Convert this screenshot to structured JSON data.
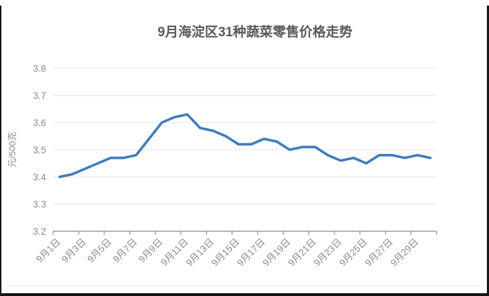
{
  "page_title": "9月海淀区31种蔬菜零售价格走势",
  "chart_data": {
    "type": "line",
    "title": "9月海淀区31种蔬菜零售价格走势",
    "xlabel": "",
    "ylabel": "元/500克",
    "ylim": [
      3.2,
      3.8
    ],
    "ytick_step": 0.1,
    "ytick_labels": [
      "3.2",
      "3.3",
      "3.4",
      "3.5",
      "3.6",
      "3.7",
      "3.8"
    ],
    "x_tick_labels": [
      "9月1日",
      "9月3日",
      "9月5日",
      "9月7日",
      "9月9日",
      "9月11日",
      "9月13日",
      "9月15日",
      "9月17日",
      "9月19日",
      "9月21日",
      "9月23日",
      "9月25日",
      "9月27日",
      "9月29日"
    ],
    "num_points": 30,
    "values": [
      3.4,
      3.41,
      3.43,
      3.45,
      3.47,
      3.47,
      3.48,
      3.54,
      3.6,
      3.62,
      3.63,
      3.58,
      3.57,
      3.55,
      3.52,
      3.52,
      3.54,
      3.53,
      3.5,
      3.51,
      3.51,
      3.48,
      3.46,
      3.47,
      3.45,
      3.48,
      3.48,
      3.47,
      3.48,
      3.47
    ],
    "grid": "horizontal",
    "legend": "none",
    "line_color": "#3F7CBF"
  },
  "colors": {
    "title_text": "#595959",
    "axis_text": "#8C8C8C",
    "gridline": "#EAEAEA",
    "axis_line": "#9B9B9B",
    "line": "#3F7CBF",
    "background": "#FFFFFF",
    "frame_border": "#161616"
  }
}
